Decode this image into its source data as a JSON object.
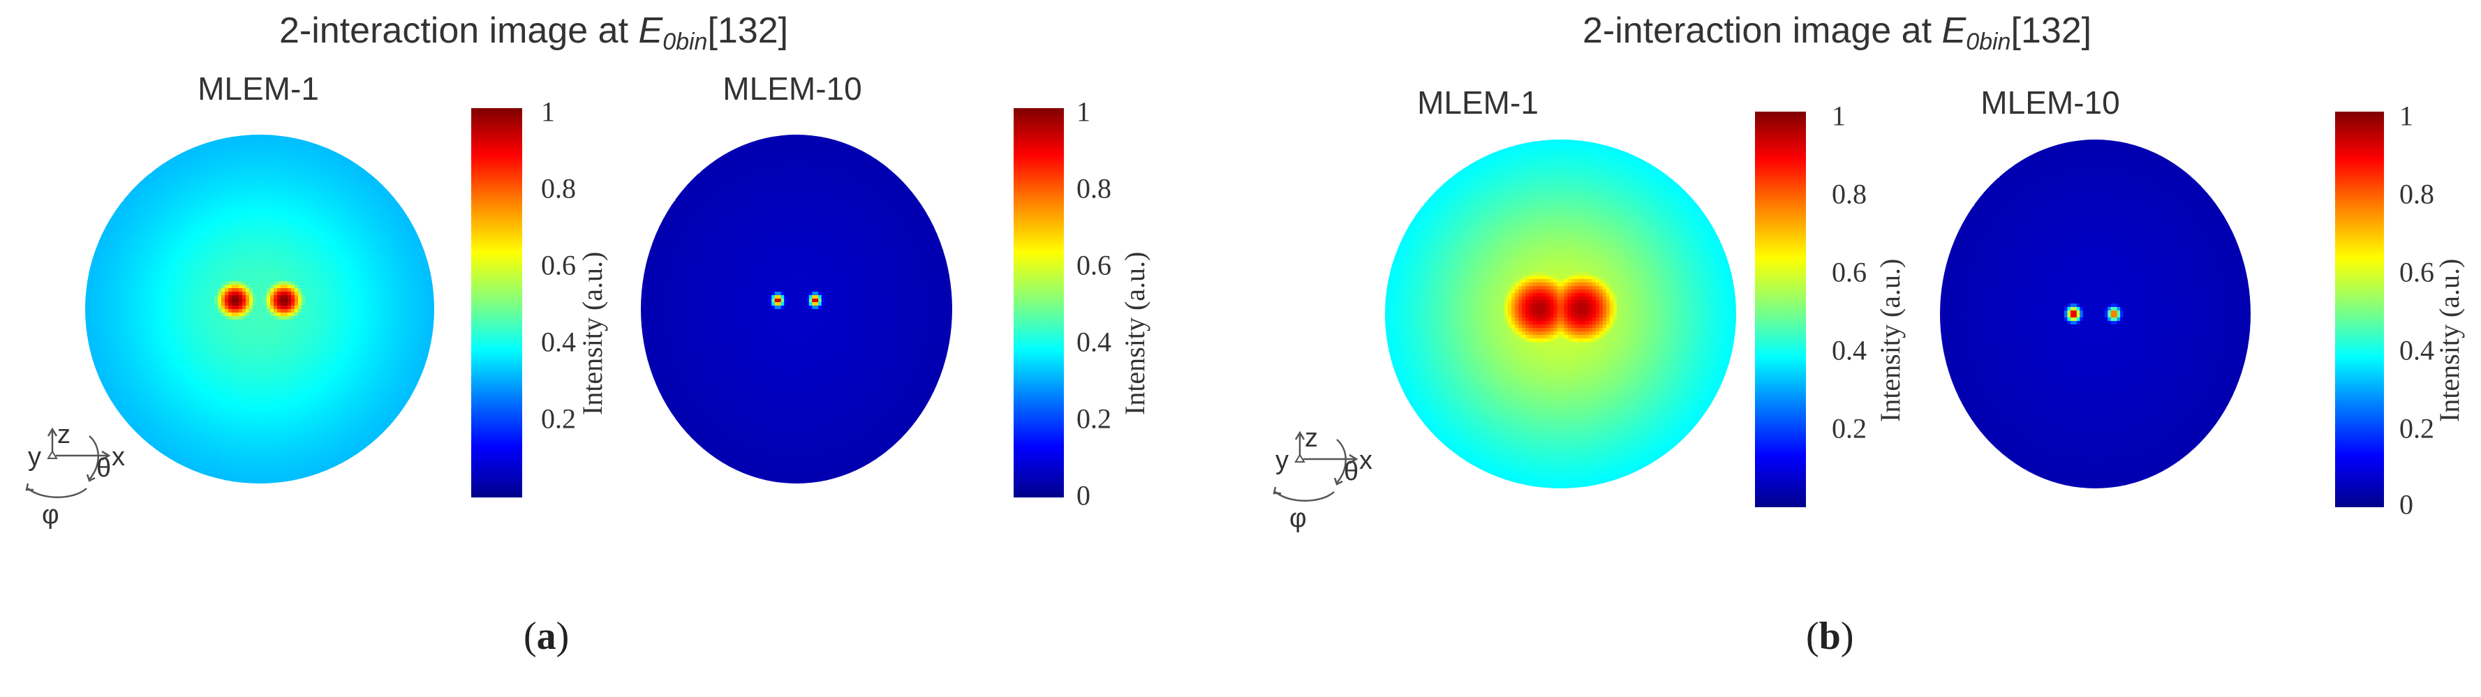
{
  "figure": {
    "panels": [
      {
        "id": "a",
        "caption_open": "(",
        "caption_letter": "a",
        "caption_close": ")",
        "title_prefix": "2-interaction image at ",
        "title_symbol": "E",
        "title_subscript": "0bin",
        "title_suffix": "[132]",
        "maps": [
          {
            "label": "MLEM-1",
            "hotspots": [
              {
                "u": -0.14,
                "v": 0.05,
                "sigma": 0.09,
                "peak": 1.0
              },
              {
                "u": 0.14,
                "v": 0.05,
                "sigma": 0.09,
                "peak": 1.0
              }
            ],
            "background": 0.28,
            "halo": {
              "sigma": 0.55,
              "amp": 0.16
            }
          },
          {
            "label": "MLEM-10",
            "hotspots": [
              {
                "u": -0.12,
                "v": 0.05,
                "sigma": 0.025,
                "peak": 1.0
              },
              {
                "u": 0.12,
                "v": 0.05,
                "sigma": 0.025,
                "peak": 1.0
              }
            ],
            "background": 0.04,
            "halo": {
              "sigma": 0.6,
              "amp": 0.03
            }
          }
        ],
        "colorbars": [
          {
            "ticks": [
              "1",
              "0.8",
              "0.6",
              "0.4",
              "0.2"
            ],
            "tick_values": [
              1,
              0.8,
              0.6,
              0.4,
              0.2
            ],
            "range": [
              0.0,
              1.0
            ],
            "label": "Intensity (a.u.)"
          },
          {
            "ticks": [
              "1",
              "0.8",
              "0.6",
              "0.4",
              "0.2",
              "0"
            ],
            "tick_values": [
              1,
              0.8,
              0.6,
              0.4,
              0.2,
              0
            ],
            "range": [
              0.0,
              1.0
            ],
            "label": "Intensity (a.u.)"
          }
        ],
        "axes_labels": {
          "z": "z",
          "x": "x",
          "y": "y",
          "theta": "θ",
          "phi": "φ"
        }
      },
      {
        "id": "b",
        "caption_open": "(",
        "caption_letter": "b",
        "caption_close": ")",
        "title_prefix": "2-interaction image at ",
        "title_symbol": "E",
        "title_subscript": "0bin",
        "title_suffix": "[132]",
        "maps": [
          {
            "label": "MLEM-1",
            "hotspots": [
              {
                "u": -0.12,
                "v": 0.03,
                "sigma": 0.2,
                "peak": 0.95
              },
              {
                "u": 0.12,
                "v": 0.03,
                "sigma": 0.2,
                "peak": 0.95
              }
            ],
            "background": 0.3,
            "halo": {
              "sigma": 0.6,
              "amp": 0.28
            }
          },
          {
            "label": "MLEM-10",
            "hotspots": [
              {
                "u": -0.14,
                "v": 0.0,
                "sigma": 0.03,
                "peak": 1.0
              },
              {
                "u": 0.12,
                "v": 0.0,
                "sigma": 0.028,
                "peak": 0.85
              }
            ],
            "background": 0.04,
            "halo": {
              "sigma": 0.6,
              "amp": 0.03
            }
          }
        ],
        "colorbars": [
          {
            "ticks": [
              "1",
              "0.8",
              "0.6",
              "0.4",
              "0.2"
            ],
            "tick_values": [
              1,
              0.8,
              0.6,
              0.4,
              0.2
            ],
            "range": [
              0.0,
              1.0
            ],
            "label": "Intensity (a.u.)"
          },
          {
            "ticks": [
              "1",
              "0.8",
              "0.6",
              "0.4",
              "0.2",
              "0"
            ],
            "tick_values": [
              1,
              0.8,
              0.6,
              0.4,
              0.2,
              0
            ],
            "range": [
              0.0,
              1.0
            ],
            "label": "Intensity (a.u.)"
          }
        ],
        "axes_labels": {
          "z": "z",
          "x": "x",
          "y": "y",
          "theta": "θ",
          "phi": "φ"
        }
      }
    ]
  },
  "chart_data": [
    {
      "type": "heatmap",
      "panel": "a",
      "title": "2-interaction image at E0bin[132]",
      "map": "MLEM-1",
      "colorbar_label": "Intensity (a.u.)",
      "clim": [
        0,
        1
      ],
      "colorbar_ticks": [
        1,
        0.8,
        0.6,
        0.4,
        0.2
      ],
      "colormap": "jet",
      "hotspots_count": 2
    },
    {
      "type": "heatmap",
      "panel": "a",
      "title": "2-interaction image at E0bin[132]",
      "map": "MLEM-10",
      "colorbar_label": "Intensity (a.u.)",
      "clim": [
        0,
        1
      ],
      "colorbar_ticks": [
        1,
        0.8,
        0.6,
        0.4,
        0.2,
        0
      ],
      "colormap": "jet",
      "hotspots_count": 2
    },
    {
      "type": "heatmap",
      "panel": "b",
      "title": "2-interaction image at E0bin[132]",
      "map": "MLEM-1",
      "colorbar_label": "Intensity (a.u.)",
      "clim": [
        0,
        1
      ],
      "colorbar_ticks": [
        1,
        0.8,
        0.6,
        0.4,
        0.2
      ],
      "colormap": "jet",
      "hotspots_count": 2
    },
    {
      "type": "heatmap",
      "panel": "b",
      "title": "2-interaction image at E0bin[132]",
      "map": "MLEM-10",
      "colorbar_label": "Intensity (a.u.)",
      "clim": [
        0,
        1
      ],
      "colorbar_ticks": [
        1,
        0.8,
        0.6,
        0.4,
        0.2,
        0
      ],
      "colormap": "jet",
      "hotspots_count": 2
    }
  ]
}
